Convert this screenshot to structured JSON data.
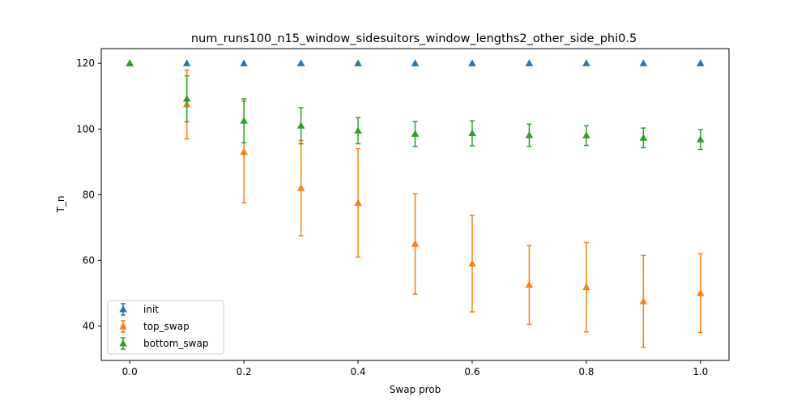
{
  "chart_data": {
    "type": "scatter",
    "title": "num_runs100_n15_window_sidesuitors_window_lengths2_other_side_phi0.5",
    "xlabel": "Swap prob",
    "ylabel": "T_n",
    "xlim": [
      -0.05,
      1.05
    ],
    "ylim": [
      29.5,
      124.5
    ],
    "xticks": [
      0.0,
      0.2,
      0.4,
      0.6,
      0.8,
      1.0
    ],
    "xtick_labels": [
      "0.0",
      "0.2",
      "0.4",
      "0.6",
      "0.8",
      "1.0"
    ],
    "yticks": [
      40,
      60,
      80,
      100,
      120
    ],
    "ytick_labels": [
      "40",
      "60",
      "80",
      "100",
      "120"
    ],
    "grid": false,
    "legend_placement": "lower-left",
    "x": [
      0.0,
      0.1,
      0.2,
      0.3,
      0.4,
      0.5,
      0.6,
      0.7,
      0.8,
      0.9,
      1.0
    ],
    "series": [
      {
        "name": "init",
        "color": "#1f77b4",
        "marker": "triangle-up",
        "values": [
          120,
          120,
          120,
          120,
          120,
          120,
          120,
          120,
          120,
          120,
          120
        ],
        "errors": [
          0,
          0,
          0,
          0,
          0,
          0,
          0,
          0,
          0,
          0,
          0
        ]
      },
      {
        "name": "top_swap",
        "color": "#ff7f0e",
        "marker": "triangle-up",
        "values": [
          120,
          107.5,
          93.0,
          82.0,
          77.5,
          65.0,
          59.0,
          52.5,
          51.8,
          47.5,
          50.0
        ],
        "errors": [
          0,
          10.5,
          15.5,
          14.5,
          16.5,
          15.3,
          14.7,
          12.0,
          13.6,
          14.0,
          12.0
        ]
      },
      {
        "name": "bottom_swap",
        "color": "#2ca02c",
        "marker": "triangle-up",
        "values": [
          120,
          109.2,
          102.5,
          101.0,
          99.5,
          98.5,
          98.7,
          98.1,
          98.0,
          97.3,
          96.8
        ],
        "errors": [
          0,
          7.0,
          6.7,
          5.5,
          4.0,
          3.8,
          3.8,
          3.4,
          3.0,
          3.0,
          3.0
        ]
      }
    ]
  }
}
